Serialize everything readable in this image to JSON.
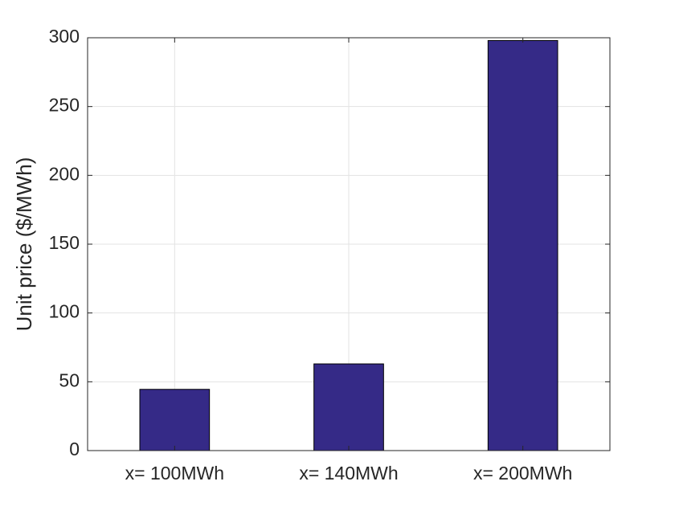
{
  "chart_data": {
    "type": "bar",
    "y_label": "Unit price ($/MWh)",
    "categories": [
      "x= 100MWh",
      "x= 140MWh",
      "x= 200MWh"
    ],
    "values": [
      44.5,
      63,
      298
    ],
    "color": "#352a87",
    "ylim": [
      0,
      300
    ],
    "yticks": [
      0,
      50,
      100,
      150,
      200,
      250,
      300
    ],
    "grid": true
  }
}
